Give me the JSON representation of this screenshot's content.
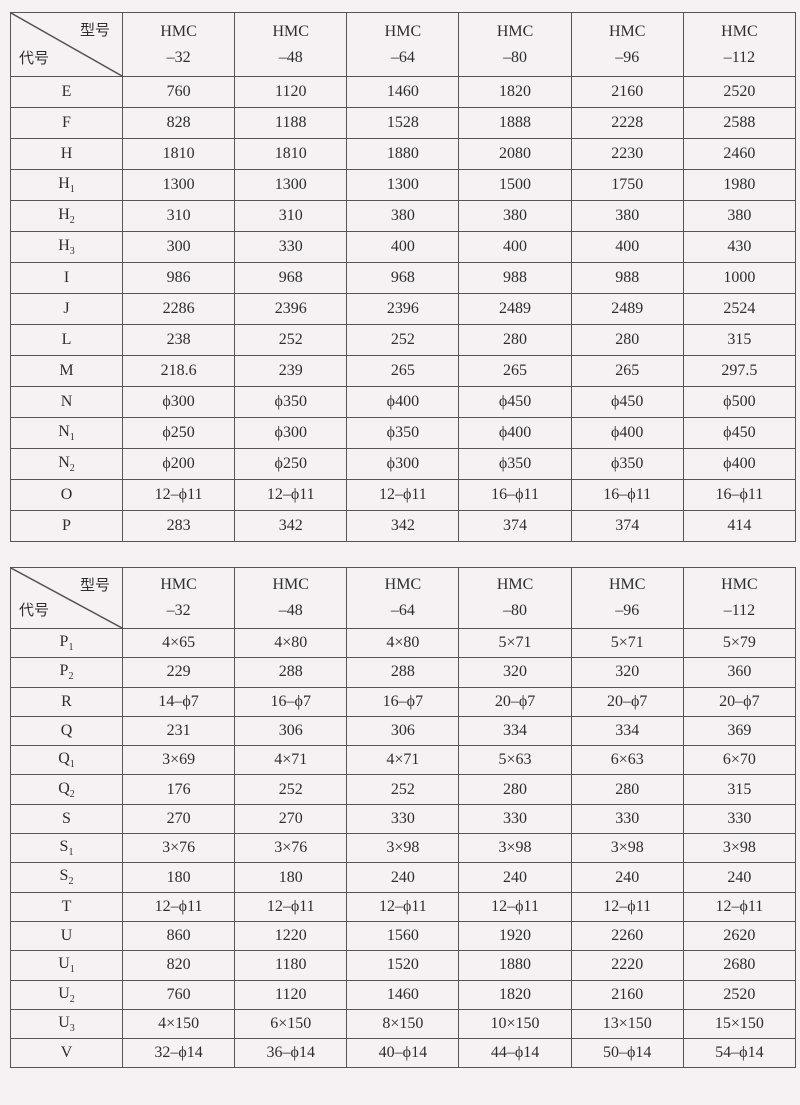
{
  "corner": {
    "model_label": "型号",
    "code_label": "代号"
  },
  "models": [
    {
      "name": "HMC",
      "size": "–32"
    },
    {
      "name": "HMC",
      "size": "–48"
    },
    {
      "name": "HMC",
      "size": "–64"
    },
    {
      "name": "HMC",
      "size": "–80"
    },
    {
      "name": "HMC",
      "size": "–96"
    },
    {
      "name": "HMC",
      "size": "–112"
    }
  ],
  "table1": {
    "rows": [
      {
        "code": "E",
        "sub": "",
        "values": [
          "760",
          "1120",
          "1460",
          "1820",
          "2160",
          "2520"
        ]
      },
      {
        "code": "F",
        "sub": "",
        "values": [
          "828",
          "1188",
          "1528",
          "1888",
          "2228",
          "2588"
        ]
      },
      {
        "code": "H",
        "sub": "",
        "values": [
          "1810",
          "1810",
          "1880",
          "2080",
          "2230",
          "2460"
        ]
      },
      {
        "code": "H",
        "sub": "1",
        "values": [
          "1300",
          "1300",
          "1300",
          "1500",
          "1750",
          "1980"
        ]
      },
      {
        "code": "H",
        "sub": "2",
        "values": [
          "310",
          "310",
          "380",
          "380",
          "380",
          "380"
        ]
      },
      {
        "code": "H",
        "sub": "3",
        "values": [
          "300",
          "330",
          "400",
          "400",
          "400",
          "430"
        ]
      },
      {
        "code": "I",
        "sub": "",
        "values": [
          "986",
          "968",
          "968",
          "988",
          "988",
          "1000"
        ]
      },
      {
        "code": "J",
        "sub": "",
        "values": [
          "2286",
          "2396",
          "2396",
          "2489",
          "2489",
          "2524"
        ]
      },
      {
        "code": "L",
        "sub": "",
        "values": [
          "238",
          "252",
          "252",
          "280",
          "280",
          "315"
        ]
      },
      {
        "code": "M",
        "sub": "",
        "values": [
          "218.6",
          "239",
          "265",
          "265",
          "265",
          "297.5"
        ]
      },
      {
        "code": "N",
        "sub": "",
        "values": [
          "ϕ300",
          "ϕ350",
          "ϕ400",
          "ϕ450",
          "ϕ450",
          "ϕ500"
        ]
      },
      {
        "code": "N",
        "sub": "1",
        "values": [
          "ϕ250",
          "ϕ300",
          "ϕ350",
          "ϕ400",
          "ϕ400",
          "ϕ450"
        ]
      },
      {
        "code": "N",
        "sub": "2",
        "values": [
          "ϕ200",
          "ϕ250",
          "ϕ300",
          "ϕ350",
          "ϕ350",
          "ϕ400"
        ]
      },
      {
        "code": "O",
        "sub": "",
        "values": [
          "12–ϕ11",
          "12–ϕ11",
          "12–ϕ11",
          "16–ϕ11",
          "16–ϕ11",
          "16–ϕ11"
        ]
      },
      {
        "code": "P",
        "sub": "",
        "values": [
          "283",
          "342",
          "342",
          "374",
          "374",
          "414"
        ]
      }
    ]
  },
  "table2": {
    "rows": [
      {
        "code": "P",
        "sub": "1",
        "values": [
          "4×65",
          "4×80",
          "4×80",
          "5×71",
          "5×71",
          "5×79"
        ]
      },
      {
        "code": "P",
        "sub": "2",
        "values": [
          "229",
          "288",
          "288",
          "320",
          "320",
          "360"
        ]
      },
      {
        "code": "R",
        "sub": "",
        "values": [
          "14–ϕ7",
          "16–ϕ7",
          "16–ϕ7",
          "20–ϕ7",
          "20–ϕ7",
          "20–ϕ7"
        ]
      },
      {
        "code": "Q",
        "sub": "",
        "values": [
          "231",
          "306",
          "306",
          "334",
          "334",
          "369"
        ]
      },
      {
        "code": "Q",
        "sub": "1",
        "values": [
          "3×69",
          "4×71",
          "4×71",
          "5×63",
          "6×63",
          "6×70"
        ]
      },
      {
        "code": "Q",
        "sub": "2",
        "values": [
          "176",
          "252",
          "252",
          "280",
          "280",
          "315"
        ]
      },
      {
        "code": "S",
        "sub": "",
        "values": [
          "270",
          "270",
          "330",
          "330",
          "330",
          "330"
        ]
      },
      {
        "code": "S",
        "sub": "1",
        "values": [
          "3×76",
          "3×76",
          "3×98",
          "3×98",
          "3×98",
          "3×98"
        ]
      },
      {
        "code": "S",
        "sub": "2",
        "values": [
          "180",
          "180",
          "240",
          "240",
          "240",
          "240"
        ]
      },
      {
        "code": "T",
        "sub": "",
        "values": [
          "12–ϕ11",
          "12–ϕ11",
          "12–ϕ11",
          "12–ϕ11",
          "12–ϕ11",
          "12–ϕ11"
        ]
      },
      {
        "code": "U",
        "sub": "",
        "values": [
          "860",
          "1220",
          "1560",
          "1920",
          "2260",
          "2620"
        ]
      },
      {
        "code": "U",
        "sub": "1",
        "values": [
          "820",
          "1180",
          "1520",
          "1880",
          "2220",
          "2680"
        ]
      },
      {
        "code": "U",
        "sub": "2",
        "values": [
          "760",
          "1120",
          "1460",
          "1820",
          "2160",
          "2520"
        ]
      },
      {
        "code": "U",
        "sub": "3",
        "values": [
          "4×150",
          "6×150",
          "8×150",
          "10×150",
          "13×150",
          "15×150"
        ]
      },
      {
        "code": "V",
        "sub": "",
        "values": [
          "32–ϕ14",
          "36–ϕ14",
          "40–ϕ14",
          "44–ϕ14",
          "50–ϕ14",
          "54–ϕ14"
        ]
      }
    ]
  }
}
